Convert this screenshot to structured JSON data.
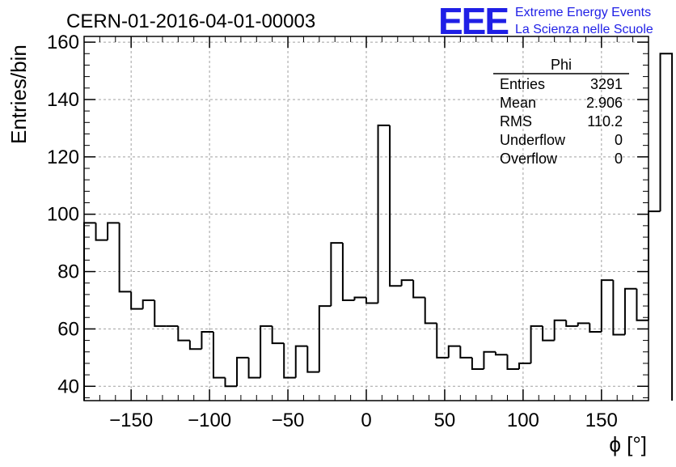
{
  "chart_data": {
    "type": "histogram",
    "title": "CERN-01-2016-04-01-00003",
    "xlabel": "ϕ [°]",
    "ylabel": "Entries/bin",
    "xlim": [
      -180,
      180
    ],
    "ylim": [
      35,
      162
    ],
    "x_ticks": [
      -150,
      -100,
      -50,
      0,
      50,
      100,
      150
    ],
    "x_tick_labels": [
      "−150",
      "−100",
      "−50",
      "0",
      "50",
      "100",
      "150"
    ],
    "y_ticks": [
      40,
      60,
      80,
      100,
      120,
      140,
      160
    ],
    "y_tick_labels": [
      "40",
      "60",
      "80",
      "100",
      "120",
      "140",
      "160"
    ],
    "grid": true,
    "bin_width": 7.5,
    "bin_start": -180,
    "values": [
      97,
      91,
      97,
      73,
      67,
      70,
      61,
      61,
      56,
      53,
      59,
      43,
      40,
      50,
      43,
      61,
      55,
      43,
      54,
      45,
      68,
      90,
      70,
      71,
      69,
      131,
      75,
      77,
      71,
      62,
      50,
      54,
      50,
      46,
      52,
      51,
      46,
      48,
      61,
      56,
      63,
      61,
      62,
      59,
      77,
      58,
      74,
      63,
      101,
      156
    ],
    "stats_box": {
      "title": "Phi",
      "rows": [
        {
          "label": "Entries",
          "value": "3291"
        },
        {
          "label": "Mean",
          "value": "2.906"
        },
        {
          "label": "RMS",
          "value": "110.2"
        },
        {
          "label": "Underflow",
          "value": "0"
        },
        {
          "label": "Overflow",
          "value": "0"
        }
      ],
      "placement": "top-right"
    }
  },
  "logo": {
    "text": "EEE",
    "line1": "Extreme Energy Events",
    "line2": "La Scienza nelle Scuole",
    "color": "#1f1fe6"
  }
}
